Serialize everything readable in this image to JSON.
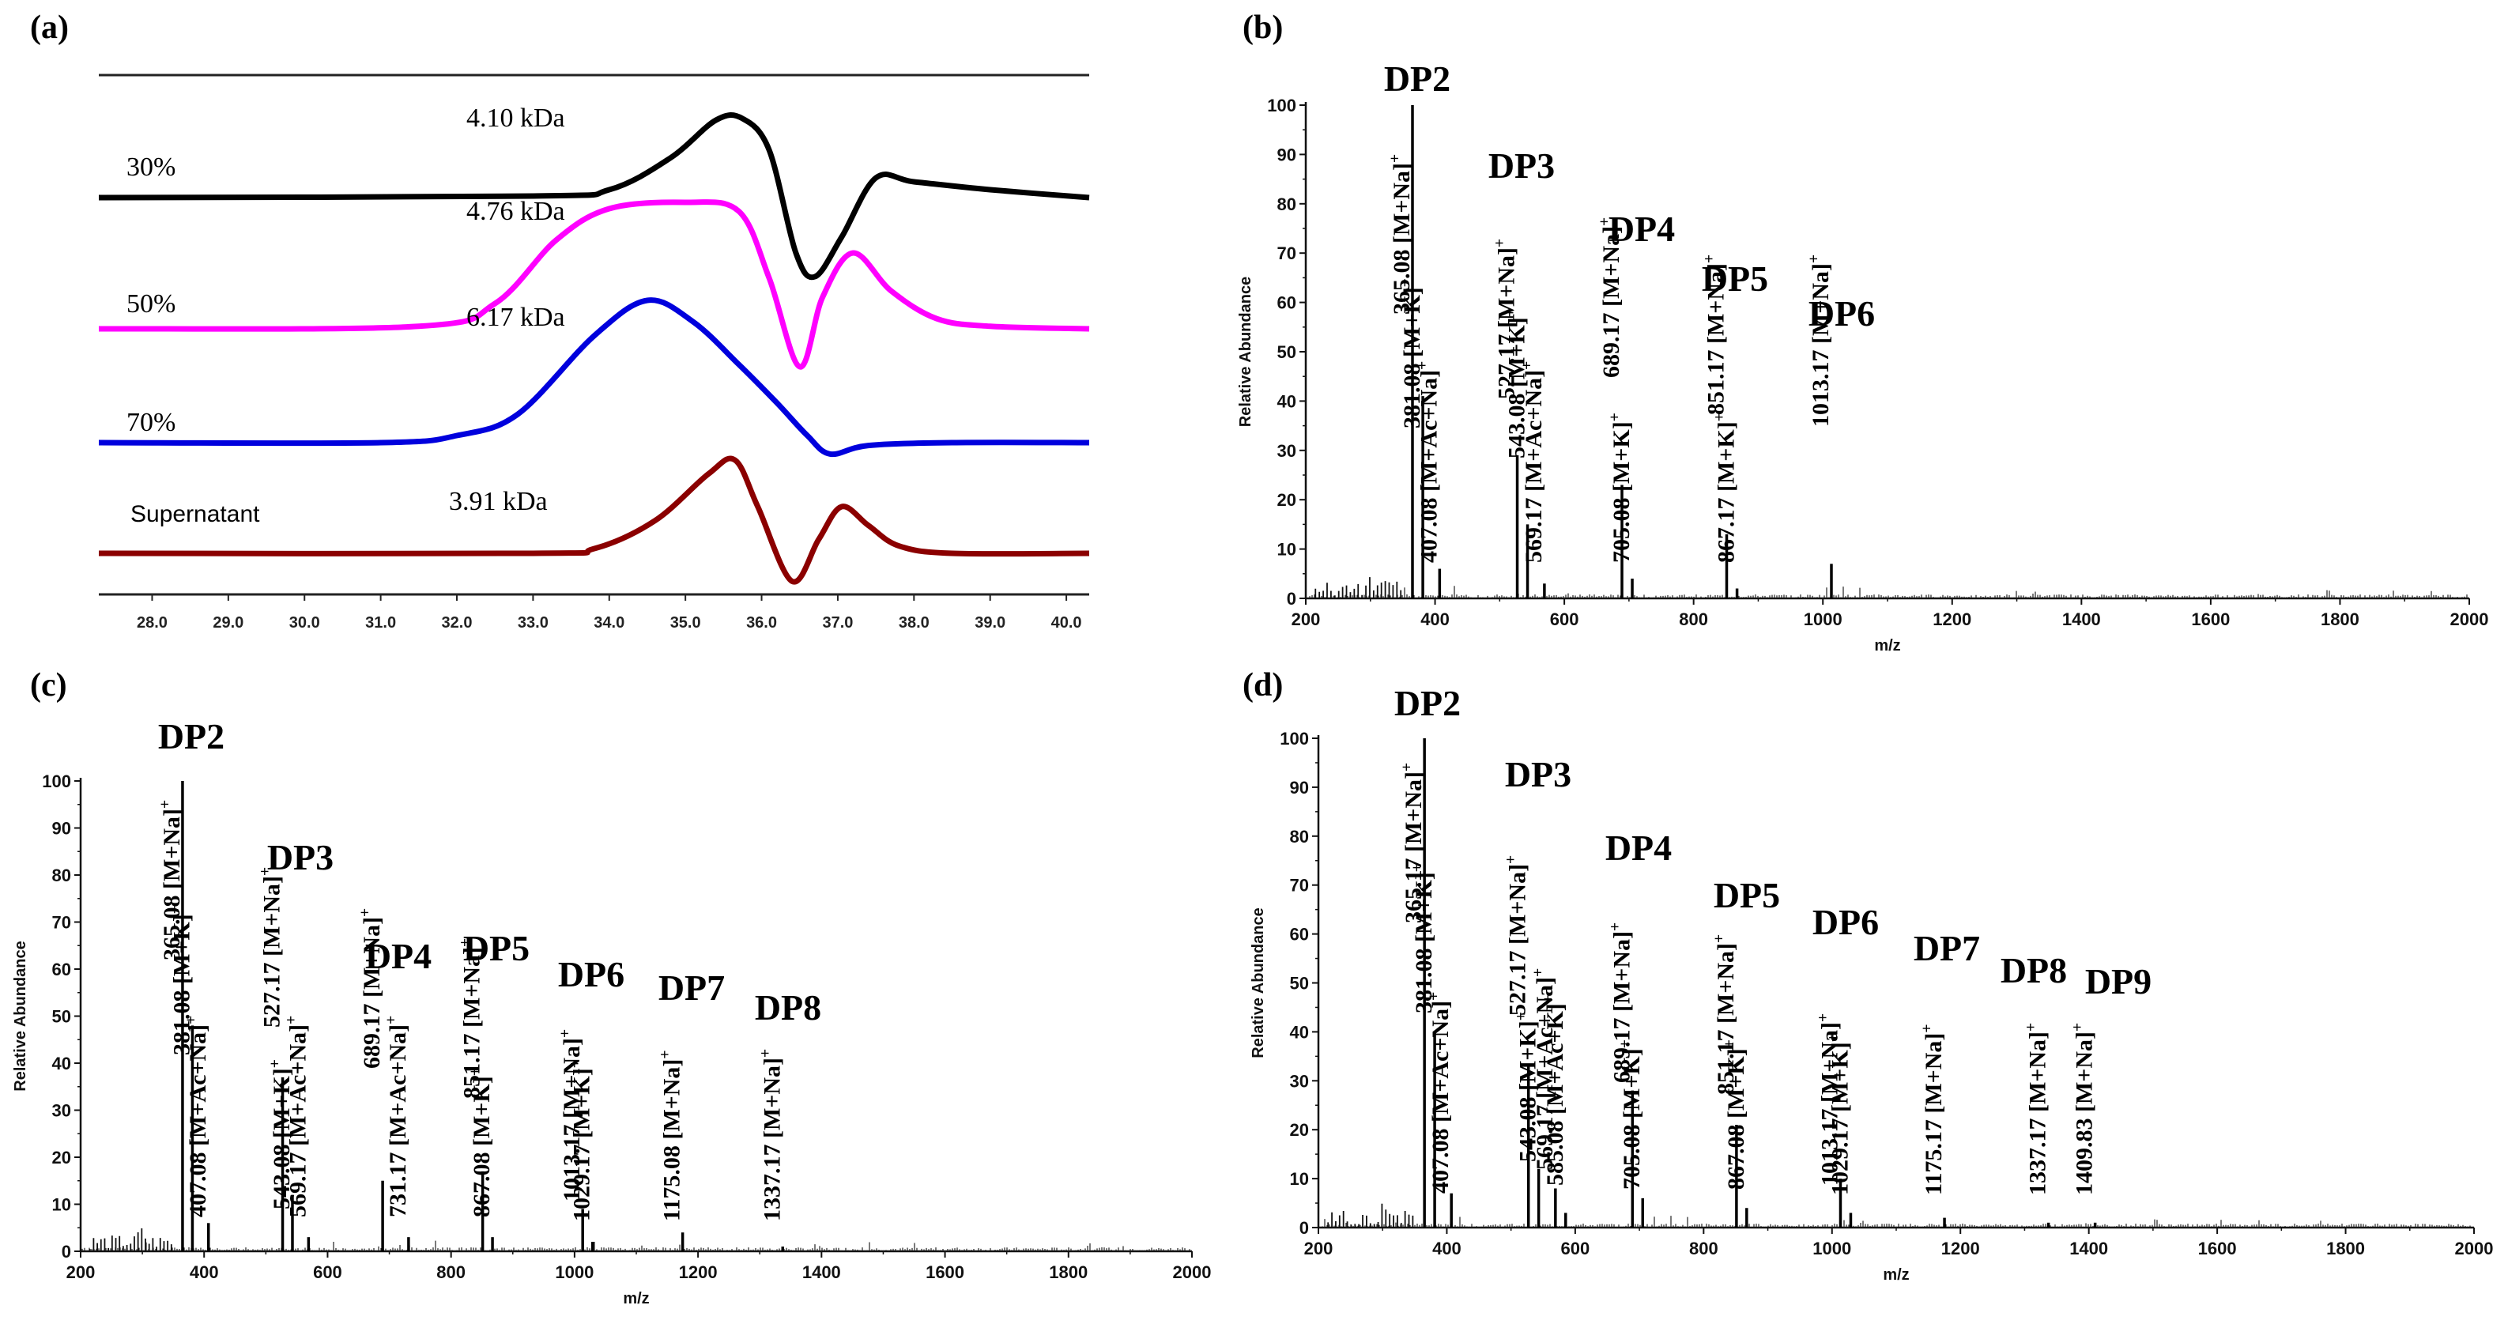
{
  "chart_data": [
    {
      "panel": "(a)",
      "type": "line",
      "xlim": [
        27.3,
        40.3
      ],
      "x_ticks": [
        "28.0",
        "29.0",
        "30.0",
        "31.0",
        "32.0",
        "33.0",
        "34.0",
        "35.0",
        "36.0",
        "37.0",
        "38.0",
        "39.0",
        "40.0"
      ],
      "series": [
        {
          "name": "30%",
          "mw": "4.10 kDa",
          "color": "#000000",
          "points": [
            [
              27.3,
              0
            ],
            [
              33,
              0.02
            ],
            [
              34,
              0.1
            ],
            [
              34.8,
              0.5
            ],
            [
              35.4,
              0.98
            ],
            [
              35.75,
              1
            ],
            [
              36.1,
              0.6
            ],
            [
              36.45,
              -0.7
            ],
            [
              36.7,
              -1
            ],
            [
              37.05,
              -0.5
            ],
            [
              37.5,
              0.25
            ],
            [
              38,
              0.2
            ],
            [
              39,
              0.1
            ],
            [
              40.3,
              0
            ]
          ]
        },
        {
          "name": "50%",
          "mw": "4.76 kDa",
          "color": "#ff00ff",
          "points": [
            [
              27.3,
              0
            ],
            [
              31.5,
              0.02
            ],
            [
              32.5,
              0.2
            ],
            [
              33.3,
              0.7
            ],
            [
              34,
              0.95
            ],
            [
              35,
              1
            ],
            [
              35.7,
              0.93
            ],
            [
              36.1,
              0.4
            ],
            [
              36.5,
              -0.3
            ],
            [
              36.8,
              0.25
            ],
            [
              37.2,
              0.6
            ],
            [
              37.7,
              0.3
            ],
            [
              38.3,
              0.08
            ],
            [
              39,
              0.02
            ],
            [
              40.3,
              0
            ]
          ]
        },
        {
          "name": "70%",
          "mw": "6.17 kDa",
          "color": "#0000dd",
          "points": [
            [
              27.3,
              0
            ],
            [
              31,
              0
            ],
            [
              32,
              0.05
            ],
            [
              32.8,
              0.2
            ],
            [
              33.8,
              0.75
            ],
            [
              34.5,
              1
            ],
            [
              35.1,
              0.85
            ],
            [
              35.7,
              0.55
            ],
            [
              36.2,
              0.28
            ],
            [
              36.6,
              0.05
            ],
            [
              36.9,
              -0.08
            ],
            [
              37.4,
              -0.02
            ],
            [
              38.5,
              0
            ],
            [
              40.3,
              0
            ]
          ]
        },
        {
          "name": "Supernatant",
          "mw": "3.91 kDa",
          "color": "#8b0000",
          "points": [
            [
              27.3,
              0
            ],
            [
              33,
              0
            ],
            [
              33.8,
              0.05
            ],
            [
              34.6,
              0.35
            ],
            [
              35.3,
              0.85
            ],
            [
              35.65,
              1
            ],
            [
              35.95,
              0.5
            ],
            [
              36.4,
              -0.3
            ],
            [
              36.75,
              0.15
            ],
            [
              37.05,
              0.5
            ],
            [
              37.4,
              0.3
            ],
            [
              37.8,
              0.08
            ],
            [
              38.5,
              0
            ],
            [
              40.3,
              0
            ]
          ]
        }
      ]
    },
    {
      "panel": "(b)",
      "type": "bar",
      "xlabel": "m/z",
      "ylabel": "Relative Abundance",
      "xlim": [
        200,
        2000
      ],
      "ylim": [
        0,
        100
      ],
      "x_ticks": [
        "200",
        "400",
        "600",
        "800",
        "1000",
        "1200",
        "1400",
        "1600",
        "1800",
        "2000"
      ],
      "y_ticks": [
        "0",
        "10",
        "20",
        "30",
        "40",
        "50",
        "60",
        "70",
        "80",
        "90",
        "100"
      ],
      "peaks": [
        {
          "mz": 365.08,
          "y": 100,
          "label": "365.08 [M+Na]⁺"
        },
        {
          "mz": 381.08,
          "y": 41,
          "label": "381.08 [M+K]⁺"
        },
        {
          "mz": 407.08,
          "y": 6,
          "label": "407.08 [M+Ac+Na]⁺"
        },
        {
          "mz": 527.17,
          "y": 29,
          "label": "527.17 [M+Na]⁺"
        },
        {
          "mz": 543.08,
          "y": 15,
          "label": "543.08 [M+K]⁺"
        },
        {
          "mz": 569.17,
          "y": 3,
          "label": "569.17 [M+Ac+Na]⁺"
        },
        {
          "mz": 689.17,
          "y": 23,
          "label": "689.17 [M+Na]⁺"
        },
        {
          "mz": 705.08,
          "y": 4,
          "label": "705.08 [M+K]⁺"
        },
        {
          "mz": 851.17,
          "y": 13,
          "label": "851.17 [M+Na]⁺"
        },
        {
          "mz": 867.17,
          "y": 2,
          "label": "867.17 [M+K]⁺"
        },
        {
          "mz": 1013.17,
          "y": 7,
          "label": "1013.17 [M+Na]⁺"
        }
      ],
      "dp_labels": [
        {
          "text": "DP2",
          "mz": 365
        },
        {
          "text": "DP3",
          "mz": 527
        },
        {
          "text": "DP4",
          "mz": 689
        },
        {
          "text": "DP5",
          "mz": 851
        },
        {
          "text": "DP6",
          "mz": 1013
        }
      ]
    },
    {
      "panel": "(c)",
      "type": "bar",
      "xlabel": "m/z",
      "ylabel": "Relative Abundance",
      "xlim": [
        200,
        2000
      ],
      "ylim": [
        0,
        100
      ],
      "x_ticks": [
        "200",
        "400",
        "600",
        "800",
        "1000",
        "1200",
        "1400",
        "1600",
        "1800",
        "2000"
      ],
      "y_ticks": [
        "0",
        "10",
        "20",
        "30",
        "40",
        "50",
        "60",
        "70",
        "80",
        "90",
        "100"
      ],
      "peaks": [
        {
          "mz": 365.08,
          "y": 100,
          "label": "365.08 [M+Na]⁺"
        },
        {
          "mz": 381.08,
          "y": 48,
          "label": "381.08 [M+K]⁺"
        },
        {
          "mz": 407.08,
          "y": 6,
          "label": "407.08 [M+Ac+Na]⁺"
        },
        {
          "mz": 527.17,
          "y": 37,
          "label": "527.17 [M+Na]⁺"
        },
        {
          "mz": 543.08,
          "y": 12,
          "label": "543.08 [M+K]⁺"
        },
        {
          "mz": 569.17,
          "y": 3,
          "label": "569.17 [M+Ac+Na]⁺"
        },
        {
          "mz": 689.17,
          "y": 15,
          "label": "689.17 [M+Na]⁺"
        },
        {
          "mz": 731.17,
          "y": 3,
          "label": "731.17 [M+Ac+Na]⁺"
        },
        {
          "mz": 851.17,
          "y": 17,
          "label": "851.17 [M+Na]⁺"
        },
        {
          "mz": 867.08,
          "y": 3,
          "label": "867.08 [M+K]⁺"
        },
        {
          "mz": 1013.17,
          "y": 9,
          "label": "1013.17 [M+Na]⁺"
        },
        {
          "mz": 1029.17,
          "y": 2,
          "label": "1029.17 [M+K]⁺"
        },
        {
          "mz": 1175.08,
          "y": 4,
          "label": "1175.08 [M+Na]⁺"
        },
        {
          "mz": 1337.17,
          "y": 1,
          "label": "1337.17 [M+Na]⁺"
        }
      ],
      "dp_labels": [
        {
          "text": "DP2",
          "mz": 365
        },
        {
          "text": "DP3",
          "mz": 527
        },
        {
          "text": "DP4",
          "mz": 689
        },
        {
          "text": "DP5",
          "mz": 851
        },
        {
          "text": "DP6",
          "mz": 1013
        },
        {
          "text": "DP7",
          "mz": 1175
        },
        {
          "text": "DP8",
          "mz": 1337
        }
      ]
    },
    {
      "panel": "(d)",
      "type": "bar",
      "xlabel": "m/z",
      "ylabel": "Relative Abundance",
      "xlim": [
        200,
        2000
      ],
      "ylim": [
        0,
        100
      ],
      "x_ticks": [
        "200",
        "400",
        "600",
        "800",
        "1000",
        "1200",
        "1400",
        "1600",
        "1800",
        "2000"
      ],
      "y_ticks": [
        "0",
        "10",
        "20",
        "30",
        "40",
        "50",
        "60",
        "70",
        "80",
        "90",
        "100"
      ],
      "peaks": [
        {
          "mz": 365.17,
          "y": 100,
          "label": "365.17 [M+Na]⁺"
        },
        {
          "mz": 381.08,
          "y": 40,
          "label": "381.08 [M+K]⁺"
        },
        {
          "mz": 407.08,
          "y": 7,
          "label": "407.08 [M+Ac+Na]⁺"
        },
        {
          "mz": 527.17,
          "y": 33,
          "label": "527.17 [M+Na]⁺"
        },
        {
          "mz": 543.08,
          "y": 12,
          "label": "543.08 [M+K]⁺"
        },
        {
          "mz": 569.17,
          "y": 8,
          "label": "569.17 [M+Ac+Na]⁺"
        },
        {
          "mz": 585.08,
          "y": 3,
          "label": "585.08 [M+Ac+K]⁺"
        },
        {
          "mz": 689.17,
          "y": 28,
          "label": "689.17 [M+Na]⁺"
        },
        {
          "mz": 705.08,
          "y": 6,
          "label": "705.08 [M+K]⁺"
        },
        {
          "mz": 851.17,
          "y": 21,
          "label": "851.17 [M+Na]⁺"
        },
        {
          "mz": 867.08,
          "y": 4,
          "label": "867.08 [M+K]⁺"
        },
        {
          "mz": 1013.17,
          "y": 10,
          "label": "1013.17 [M+Na]⁺"
        },
        {
          "mz": 1029.17,
          "y": 3,
          "label": "1029.17 [M+K]⁺"
        },
        {
          "mz": 1175.17,
          "y": 2,
          "label": "1175.17 [M+Na]⁺"
        },
        {
          "mz": 1337.17,
          "y": 1,
          "label": "1337.17 [M+Na]⁺"
        },
        {
          "mz": 1409.83,
          "y": 1,
          "label": "1409.83 [M+Na]⁺"
        }
      ],
      "dp_labels": [
        {
          "text": "DP2",
          "mz": 365
        },
        {
          "text": "DP3",
          "mz": 527
        },
        {
          "text": "DP4",
          "mz": 689
        },
        {
          "text": "DP5",
          "mz": 851
        },
        {
          "text": "DP6",
          "mz": 1013
        },
        {
          "text": "DP7",
          "mz": 1175
        },
        {
          "text": "DP8",
          "mz": 1337
        },
        {
          "text": "DP9",
          "mz": 1409
        }
      ]
    }
  ]
}
